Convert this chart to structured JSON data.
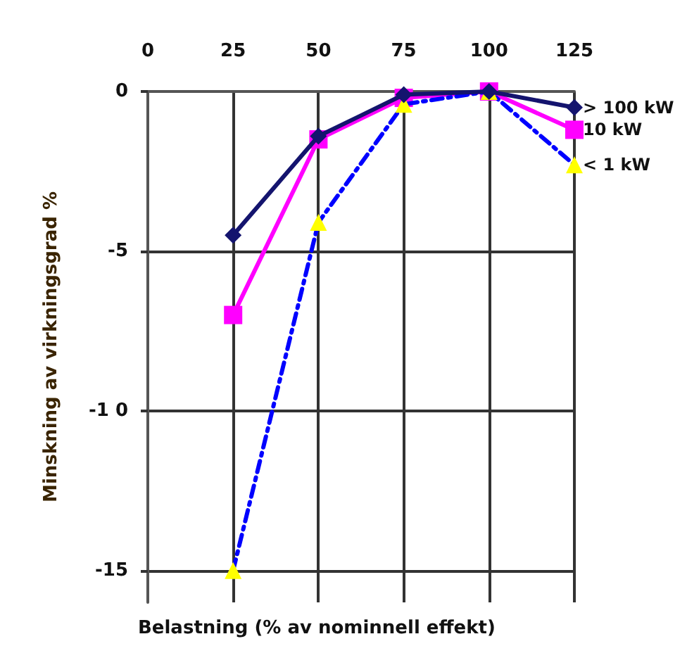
{
  "chart_data": {
    "type": "line",
    "xlabel": "Belastning (% av nominnell effekt)",
    "ylabel": "Minskning av virkningsgrad %",
    "x": [
      25,
      50,
      75,
      100,
      125
    ],
    "series": [
      {
        "name": "> 100 kW",
        "color": "#14146e",
        "values": [
          -4.5,
          -1.4,
          -0.1,
          0,
          -0.5
        ],
        "marker": "diamond",
        "line_style": "solid"
      },
      {
        "name": "10 kW",
        "color": "#ff00ff",
        "values": [
          -7,
          -1.5,
          -0.2,
          0,
          -1.2
        ],
        "marker": "square",
        "line_style": "solid"
      },
      {
        "name": "< 1 kW",
        "color": "#0000ff",
        "colors": [
          "#ffff00",
          "#ffff00",
          "#ffff00",
          "#ffff00",
          "#ffff00"
        ],
        "values": [
          -15,
          -4.1,
          -0.4,
          0,
          -2.3
        ],
        "marker": "triangle",
        "line_style": "dashed"
      }
    ],
    "xlim": [
      0,
      125
    ],
    "xticks": [
      0,
      25,
      50,
      75,
      100,
      125
    ],
    "ylim": [
      -16,
      0
    ],
    "yticks": [
      0,
      -5,
      {
        "value": -10,
        "label": "-1 0"
      },
      -15
    ],
    "grid": true,
    "legend": false
  }
}
